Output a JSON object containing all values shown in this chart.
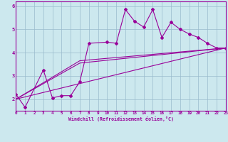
{
  "xlabel": "Windchill (Refroidissement éolien,°C)",
  "ylabel": "",
  "xlim": [
    0,
    23
  ],
  "ylim": [
    1.5,
    6.2
  ],
  "yticks": [
    2,
    3,
    4,
    5,
    6
  ],
  "xticks": [
    0,
    1,
    2,
    3,
    4,
    5,
    6,
    7,
    8,
    9,
    10,
    11,
    12,
    13,
    14,
    15,
    16,
    17,
    18,
    19,
    20,
    21,
    22,
    23
  ],
  "bg_color": "#cce8ee",
  "line_color": "#990099",
  "grid_color": "#99bbcc",
  "line1_x": [
    0,
    1,
    3,
    4,
    5,
    6,
    7,
    8,
    10,
    11,
    12,
    13,
    14,
    15,
    16,
    17,
    18,
    19,
    20,
    21,
    22,
    23
  ],
  "line1_y": [
    2.2,
    1.65,
    3.25,
    2.05,
    2.15,
    2.15,
    2.75,
    4.4,
    4.45,
    4.4,
    5.85,
    5.35,
    5.1,
    5.85,
    4.65,
    5.3,
    5.0,
    4.8,
    4.65,
    4.4,
    4.2,
    4.2
  ],
  "line2_x": [
    0,
    23
  ],
  "line2_y": [
    2.0,
    4.2
  ],
  "line3_x": [
    0,
    7,
    23
  ],
  "line3_y": [
    2.0,
    3.55,
    4.2
  ],
  "line4_x": [
    0,
    7,
    23
  ],
  "line4_y": [
    2.0,
    3.65,
    4.2
  ]
}
